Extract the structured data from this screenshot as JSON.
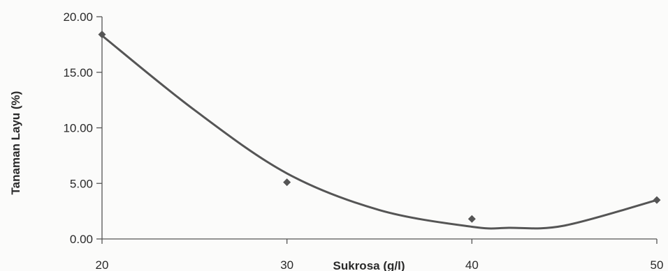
{
  "chart_data": {
    "type": "scatter",
    "xlabel": "Sukrosa (g/l)",
    "ylabel": "Tanaman Layu (%)",
    "xlim": [
      20,
      50
    ],
    "ylim": [
      0,
      20
    ],
    "x_ticks": [
      "20",
      "30",
      "40",
      "50"
    ],
    "y_ticks": [
      "0.00",
      "5.00",
      "10.00",
      "15.00",
      "20.00"
    ],
    "grid": false,
    "legend": "none",
    "series": [
      {
        "marker": "diamond",
        "color": "#555555",
        "points": [
          {
            "x": 20,
            "y": 18.4
          },
          {
            "x": 30,
            "y": 5.1
          },
          {
            "x": 40,
            "y": 1.8
          },
          {
            "x": 50,
            "y": 3.5
          }
        ]
      }
    ],
    "trendline": {
      "type": "polynomial",
      "order": 2,
      "color": "#555555",
      "points": [
        {
          "x": 20,
          "y": 18.3
        },
        {
          "x": 25,
          "y": 11.6
        },
        {
          "x": 30,
          "y": 5.9
        },
        {
          "x": 35,
          "y": 2.6
        },
        {
          "x": 40,
          "y": 1.1
        },
        {
          "x": 42,
          "y": 1.0
        },
        {
          "x": 45,
          "y": 1.2
        },
        {
          "x": 50,
          "y": 3.5
        }
      ]
    }
  }
}
